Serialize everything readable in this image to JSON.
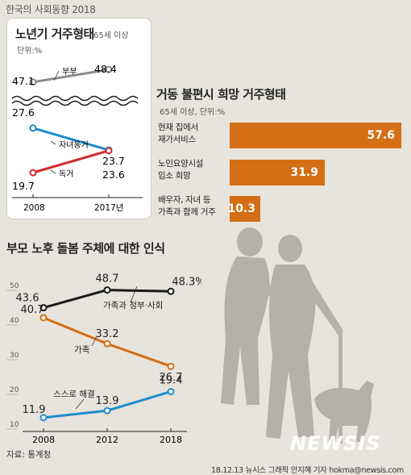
{
  "header": "한국의 사회동향 2018",
  "panel1": {
    "title": "노년기 거주형태",
    "subtitle": "65세 이상",
    "unit": "단위:%",
    "years": [
      "2008",
      "2017년"
    ],
    "series": [
      {
        "name": "부부",
        "values": [
          47.1,
          48.4
        ],
        "labels": [
          "47.1",
          "48.4"
        ],
        "color": "#8a8a8a"
      },
      {
        "name": "자녀동거",
        "values": [
          27.6,
          23.7
        ],
        "labels": [
          "27.6",
          "23.7"
        ],
        "color": "#1f8ccd"
      },
      {
        "name": "독거",
        "values": [
          19.7,
          23.6
        ],
        "labels": [
          "19.7",
          "23.6"
        ],
        "color": "#d22a2a"
      }
    ]
  },
  "panel2": {
    "title": "거동 불편시 희망 거주형태",
    "subtitle": "65세 이상, 단위:%",
    "bars": [
      {
        "line1": "현재 집에서",
        "line2": "재가서비스",
        "value": 57.6,
        "label": "57.6"
      },
      {
        "line1": "노인요양시설",
        "line2": "입소 희망",
        "value": 31.9,
        "label": "31.9"
      },
      {
        "line1": "배우자, 자녀 등",
        "line2": "가족과 함께 거주",
        "value": 10.3,
        "label": "10.3"
      }
    ],
    "color": "#d36e14"
  },
  "panel3": {
    "title": "부모 노후 돌봄 주체에 대한 인식",
    "source": "자료: 통계청"
  },
  "chart_data": [
    {
      "type": "line",
      "title": "노년기 거주형태",
      "subtitle": "65세 이상",
      "unit": "단위:%",
      "x": [
        "2008",
        "2017"
      ],
      "series": [
        {
          "name": "부부",
          "values": [
            47.1,
            48.4
          ]
        },
        {
          "name": "자녀동거",
          "values": [
            27.6,
            23.7
          ]
        },
        {
          "name": "독거",
          "values": [
            19.7,
            23.6
          ]
        }
      ]
    },
    {
      "type": "bar",
      "orientation": "horizontal",
      "title": "거동 불편시 희망 거주형태",
      "subtitle": "65세 이상, 단위:%",
      "categories": [
        "현재 집에서 재가서비스",
        "노인요양시설 입소 희망",
        "배우자, 자녀 등 가족과 함께 거주"
      ],
      "values": [
        57.6,
        31.9,
        10.3
      ]
    },
    {
      "type": "line",
      "title": "부모 노후 돌봄 주체에 대한 인식",
      "x": [
        "2008",
        "2012",
        "2018"
      ],
      "ylim": [
        10,
        50
      ],
      "yticks": [
        "10",
        "20",
        "30",
        "40",
        "50"
      ],
      "series": [
        {
          "name": "가족과 정부·사회",
          "values": [
            43.6,
            48.7,
            48.3
          ],
          "labels": [
            "43.6",
            "48.7",
            "48.3%"
          ],
          "color": "#1a1a1a"
        },
        {
          "name": "가족",
          "values": [
            40.7,
            33.2,
            26.7
          ],
          "labels": [
            "40.7",
            "33.2",
            "26.7"
          ],
          "color": "#d36e14"
        },
        {
          "name": "스스로 해결",
          "values": [
            11.9,
            13.9,
            19.4
          ],
          "labels": [
            "11.9",
            "13.9",
            "19.4"
          ],
          "color": "#1f8ccd"
        }
      ]
    }
  ],
  "footer": {
    "source": "자료: 통계청",
    "credit": "18.12.13 뉴시스 그래픽 안지혜 기자 hokma@newsis.com",
    "logo": "NEWSIS"
  }
}
